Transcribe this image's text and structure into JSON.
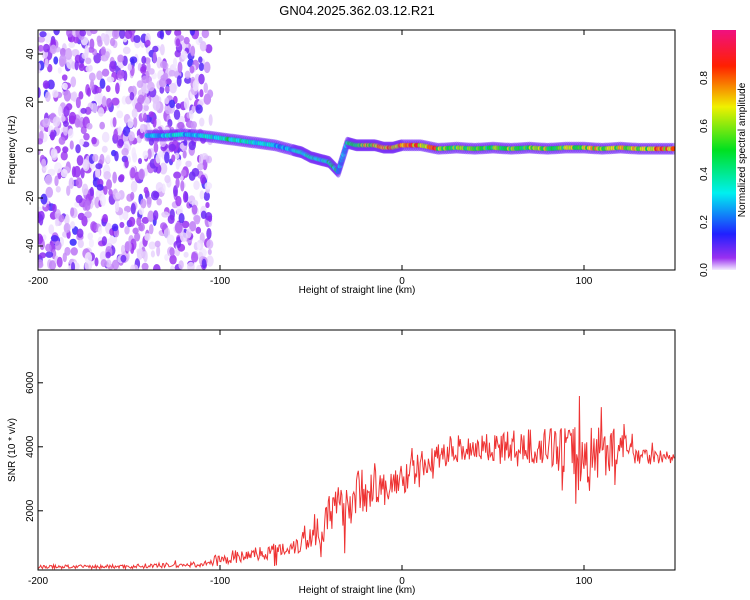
{
  "chart_data": [
    {
      "type": "heatmap",
      "title": "GN04.2025.362.03.12.R21",
      "xlabel": "Height of straight line (km)",
      "ylabel": "Frequency (Hz)",
      "xlim": [
        -200,
        150
      ],
      "ylim": [
        -50,
        50
      ],
      "xticks": [
        -200,
        -100,
        0,
        100
      ],
      "yticks": [
        -40,
        -20,
        0,
        20,
        40
      ],
      "colorbar": {
        "label": "Normalized spectral amplitude",
        "range": [
          0,
          1
        ],
        "ticks": [
          "0.0",
          "0.2",
          "0.4",
          "0.6",
          "0.8"
        ]
      },
      "noise_region_km": [
        -200,
        -105
      ],
      "ridge": {
        "x": [
          -140,
          -130,
          -120,
          -110,
          -100,
          -90,
          -80,
          -70,
          -60,
          -55,
          -50,
          -45,
          -40,
          -35,
          -30,
          -25,
          -20,
          -15,
          -10,
          -5,
          0,
          10,
          20,
          30,
          40,
          50,
          60,
          70,
          80,
          90,
          100,
          110,
          120,
          130,
          140,
          150
        ],
        "freq": [
          6,
          6,
          6.5,
          6,
          5,
          4,
          3,
          2,
          0,
          -1,
          -3,
          -4,
          -5,
          -9,
          3,
          2,
          2,
          2,
          1,
          1,
          2,
          2,
          0.5,
          1,
          0.5,
          1,
          0.5,
          1,
          0.5,
          1,
          1,
          0.5,
          1,
          0.5,
          0.5,
          0.5
        ],
        "amplitude": [
          0.3,
          0.35,
          0.3,
          0.35,
          0.45,
          0.4,
          0.35,
          0.3,
          0.35,
          0.4,
          0.4,
          0.35,
          0.45,
          0.3,
          0.5,
          0.6,
          0.7,
          0.75,
          0.8,
          0.85,
          0.9,
          0.8,
          0.6,
          0.6,
          0.55,
          0.6,
          0.6,
          0.65,
          0.6,
          0.65,
          0.7,
          0.65,
          0.7,
          0.7,
          0.8,
          0.9
        ]
      }
    },
    {
      "type": "line",
      "xlabel": "Height of straight line (km)",
      "ylabel": "SNR (10 * v/v)",
      "xlim": [
        -200,
        150
      ],
      "ylim": [
        150,
        7650
      ],
      "xticks": [
        -200,
        -100,
        0,
        100
      ],
      "yticks": [
        2000,
        4000,
        6000
      ],
      "color": "#ee3333",
      "x": [
        -200,
        -190,
        -180,
        -170,
        -160,
        -150,
        -140,
        -130,
        -120,
        -110,
        -100,
        -90,
        -80,
        -70,
        -60,
        -50,
        -40,
        -30,
        -20,
        -10,
        0,
        10,
        20,
        30,
        40,
        50,
        60,
        70,
        80,
        90,
        100,
        110,
        120,
        130,
        140,
        150
      ],
      "snr_mean": [
        250,
        250,
        250,
        250,
        260,
        260,
        280,
        300,
        300,
        320,
        450,
        550,
        650,
        750,
        900,
        1200,
        1800,
        2300,
        2700,
        2600,
        3000,
        3400,
        3700,
        3900,
        4000,
        4000,
        4000,
        4000,
        4000,
        3900,
        3600,
        3900,
        4000,
        3800,
        3700,
        3650
      ],
      "snr_spread": [
        120,
        120,
        120,
        120,
        120,
        150,
        150,
        150,
        150,
        150,
        300,
        350,
        400,
        500,
        600,
        900,
        1400,
        1600,
        1500,
        1200,
        1000,
        900,
        800,
        800,
        900,
        1000,
        1000,
        1100,
        1200,
        1500,
        2500,
        1800,
        1000,
        700,
        500,
        300
      ]
    }
  ]
}
